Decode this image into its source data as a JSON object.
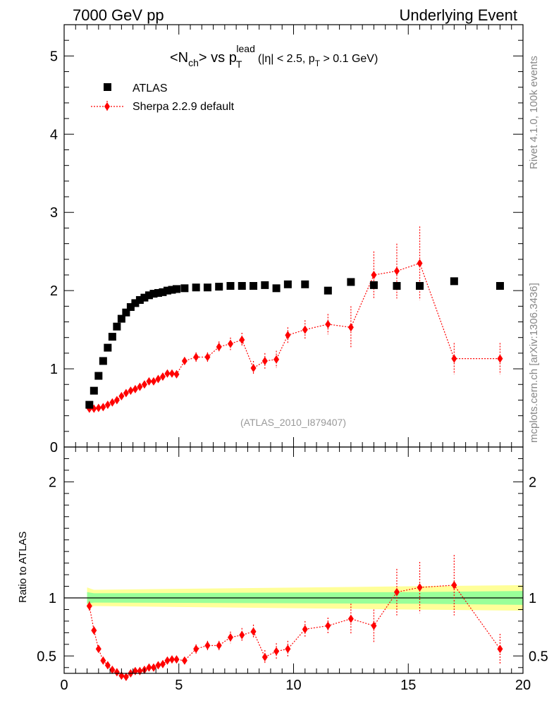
{
  "header": {
    "left": "7000 GeV pp",
    "right": "Underlying Event"
  },
  "side_labels": {
    "rivet": "Rivet 4.1.0,  100k events",
    "mcplots": "mcplots.cern.ch [arXiv:1306.3436]"
  },
  "plot_title": {
    "part1": "<N",
    "sub1": "ch",
    "part2": "> vs p",
    "sub2": "T",
    "sup2": "lead",
    "part3": "(|η| < 2.5, p",
    "sub3": "T",
    "part4": " > 0.1 GeV)"
  },
  "watermark": "(ATLAS_2010_I879407)",
  "legend": {
    "data_label": "ATLAS",
    "mc_label": "Sherpa 2.2.9 default"
  },
  "ratio_ylabel": "Ratio to ATLAS",
  "colors": {
    "data": "#000000",
    "mc": "#ff0000",
    "band_inner": "#99ff99",
    "band_outer": "#ffff99",
    "watermark": "#999999"
  },
  "chart_data": [
    {
      "type": "scatter",
      "panel": "main",
      "xlim": [
        0,
        20
      ],
      "ylim": [
        0,
        5.4
      ],
      "yticks": [
        0,
        1,
        2,
        3,
        4,
        5
      ],
      "ytick_labels": [
        "0",
        "1",
        "2",
        "3",
        "4",
        "5"
      ],
      "series": [
        {
          "name": "ATLAS",
          "marker": "square",
          "x": [
            1.1,
            1.3,
            1.5,
            1.7,
            1.9,
            2.1,
            2.3,
            2.5,
            2.7,
            2.9,
            3.1,
            3.3,
            3.5,
            3.7,
            3.9,
            4.1,
            4.3,
            4.5,
            4.7,
            4.9,
            5.25,
            5.75,
            6.25,
            6.75,
            7.25,
            7.75,
            8.25,
            8.75,
            9.25,
            9.75,
            10.5,
            11.5,
            12.5,
            13.5,
            14.5,
            15.5,
            17.0,
            19.0
          ],
          "y": [
            0.54,
            0.72,
            0.91,
            1.1,
            1.27,
            1.41,
            1.54,
            1.64,
            1.72,
            1.79,
            1.84,
            1.88,
            1.91,
            1.94,
            1.96,
            1.97,
            1.98,
            2.0,
            2.01,
            2.02,
            2.03,
            2.04,
            2.04,
            2.05,
            2.06,
            2.06,
            2.06,
            2.07,
            2.03,
            2.08,
            2.08,
            2.0,
            2.11,
            2.07,
            2.06,
            2.06,
            2.12,
            2.06
          ]
        },
        {
          "name": "Sherpa 2.2.9 default",
          "marker": "diamond",
          "x": [
            1.1,
            1.3,
            1.5,
            1.7,
            1.9,
            2.1,
            2.3,
            2.5,
            2.7,
            2.9,
            3.1,
            3.3,
            3.5,
            3.7,
            3.9,
            4.1,
            4.3,
            4.5,
            4.7,
            4.9,
            5.25,
            5.75,
            6.25,
            6.75,
            7.25,
            7.75,
            8.25,
            8.75,
            9.25,
            9.75,
            10.5,
            11.5,
            12.5,
            13.5,
            14.5,
            15.5,
            17.0,
            19.0
          ],
          "y": [
            0.49,
            0.49,
            0.5,
            0.51,
            0.54,
            0.57,
            0.6,
            0.65,
            0.69,
            0.72,
            0.74,
            0.77,
            0.8,
            0.84,
            0.84,
            0.87,
            0.9,
            0.94,
            0.94,
            0.93,
            1.1,
            1.15,
            1.15,
            1.28,
            1.32,
            1.37,
            1.01,
            1.1,
            1.12,
            1.43,
            1.5,
            1.57,
            1.53,
            2.2,
            2.25,
            2.35,
            1.13,
            1.13
          ],
          "yerr": [
            0.03,
            0.02,
            0.02,
            0.02,
            0.02,
            0.02,
            0.02,
            0.02,
            0.02,
            0.03,
            0.03,
            0.03,
            0.03,
            0.03,
            0.04,
            0.04,
            0.04,
            0.04,
            0.04,
            0.05,
            0.05,
            0.06,
            0.06,
            0.07,
            0.08,
            0.09,
            0.09,
            0.1,
            0.11,
            0.1,
            0.12,
            0.13,
            0.27,
            0.3,
            0.35,
            0.47,
            0.2,
            0.2
          ]
        }
      ]
    },
    {
      "type": "scatter",
      "panel": "ratio",
      "xlim": [
        0,
        20
      ],
      "ylim": [
        0.35,
        2.3
      ],
      "yticks": [
        0.5,
        1,
        2
      ],
      "ytick_labels": [
        "0.5",
        "1",
        "2"
      ],
      "xticks": [
        0,
        5,
        10,
        15,
        20
      ],
      "xtick_labels": [
        "0",
        "5",
        "10",
        "15",
        "20"
      ],
      "band_x": [
        1.0,
        1.3,
        15.0,
        20.0
      ],
      "band_inner_halfwidth": [
        0.05,
        0.04,
        0.05,
        0.06
      ],
      "band_outer_halfwidth": [
        0.09,
        0.07,
        0.1,
        0.11
      ],
      "series": [
        {
          "name": "Sherpa 2.2.9 default",
          "marker": "diamond",
          "x": [
            1.1,
            1.3,
            1.5,
            1.7,
            1.9,
            2.1,
            2.3,
            2.5,
            2.7,
            2.9,
            3.1,
            3.3,
            3.5,
            3.7,
            3.9,
            4.1,
            4.3,
            4.5,
            4.7,
            4.9,
            5.25,
            5.75,
            6.25,
            6.75,
            7.25,
            7.75,
            8.25,
            8.75,
            9.25,
            9.75,
            10.5,
            11.5,
            12.5,
            13.5,
            14.5,
            15.5,
            17.0,
            19.0
          ],
          "y": [
            0.93,
            0.72,
            0.56,
            0.46,
            0.42,
            0.38,
            0.36,
            0.33,
            0.32,
            0.35,
            0.37,
            0.37,
            0.38,
            0.4,
            0.4,
            0.42,
            0.43,
            0.46,
            0.47,
            0.47,
            0.46,
            0.56,
            0.59,
            0.59,
            0.66,
            0.68,
            0.71,
            0.49,
            0.54,
            0.56,
            0.73,
            0.76,
            0.82,
            0.76,
            1.05,
            1.09,
            1.11,
            0.56
          ],
          "yerr": [
            0.04,
            0.03,
            0.02,
            0.02,
            0.02,
            0.02,
            0.02,
            0.02,
            0.02,
            0.02,
            0.02,
            0.02,
            0.02,
            0.02,
            0.03,
            0.03,
            0.03,
            0.03,
            0.03,
            0.03,
            0.03,
            0.04,
            0.04,
            0.04,
            0.05,
            0.06,
            0.06,
            0.06,
            0.07,
            0.07,
            0.07,
            0.07,
            0.13,
            0.14,
            0.2,
            0.22,
            0.26,
            0.13
          ]
        }
      ]
    }
  ]
}
